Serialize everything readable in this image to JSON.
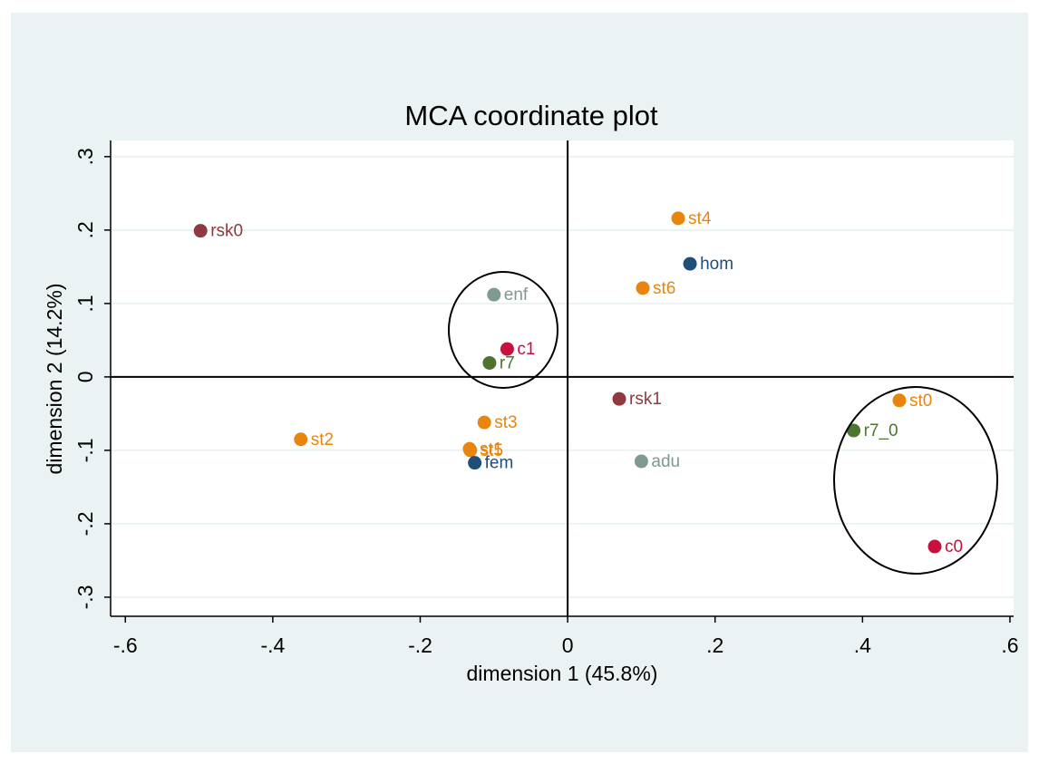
{
  "chart_data": {
    "type": "scatter",
    "title": "MCA coordinate plot",
    "x_label": "dimension 1 (45.8%)",
    "y_label": "dimension 2 (14.2%)",
    "xlim": [
      -0.62,
      0.605
    ],
    "ylim": [
      -0.326,
      0.322
    ],
    "xticks": [
      {
        "value": -0.6,
        "label": "-.6"
      },
      {
        "value": -0.4,
        "label": "-.4"
      },
      {
        "value": -0.2,
        "label": "-.2"
      },
      0,
      {
        "value": 0.2,
        "label": ".2"
      },
      {
        "value": 0.4,
        "label": ".4"
      },
      {
        "value": 0.6,
        "label": ".6"
      }
    ],
    "yticks": [
      {
        "value": -0.3,
        "label": "-.3"
      },
      {
        "value": -0.2,
        "label": "-.2"
      },
      {
        "value": -0.1,
        "label": "-.1"
      },
      0,
      {
        "value": 0.1,
        "label": ".1"
      },
      {
        "value": 0.2,
        "label": ".2"
      },
      {
        "value": 0.3,
        "label": ".3"
      }
    ],
    "grid": true,
    "series": [
      {
        "color": "#8e3a3f",
        "labels": [
          "rsk0",
          "rsk1"
        ],
        "x": [
          -0.498,
          0.07
        ],
        "values": [
          0.199,
          -0.03
        ]
      },
      {
        "color": "#e8850f",
        "labels": [
          "st2",
          "st3",
          "st1",
          "st5",
          "st4",
          "st6",
          "st0"
        ],
        "x": [
          -0.362,
          -0.113,
          -0.133,
          -0.132,
          0.15,
          0.102,
          0.45
        ],
        "values": [
          -0.085,
          -0.062,
          -0.098,
          -0.1,
          0.216,
          0.121,
          -0.032
        ]
      },
      {
        "color": "#7f9a90",
        "labels": [
          "enf",
          "adu"
        ],
        "x": [
          -0.1,
          0.1
        ],
        "values": [
          0.112,
          -0.115
        ]
      },
      {
        "color": "#4e7530",
        "labels": [
          "r7",
          "r7_0"
        ],
        "x": [
          -0.106,
          0.388
        ],
        "values": [
          0.019,
          -0.073
        ]
      },
      {
        "color": "#c8103e",
        "labels": [
          "c1",
          "c0"
        ],
        "x": [
          -0.082,
          0.498
        ],
        "values": [
          0.038,
          -0.231
        ]
      },
      {
        "color": "#1f4e79",
        "labels": [
          "fem",
          "hom"
        ],
        "x": [
          -0.126,
          0.166
        ],
        "values": [
          -0.117,
          0.154
        ]
      }
    ]
  }
}
